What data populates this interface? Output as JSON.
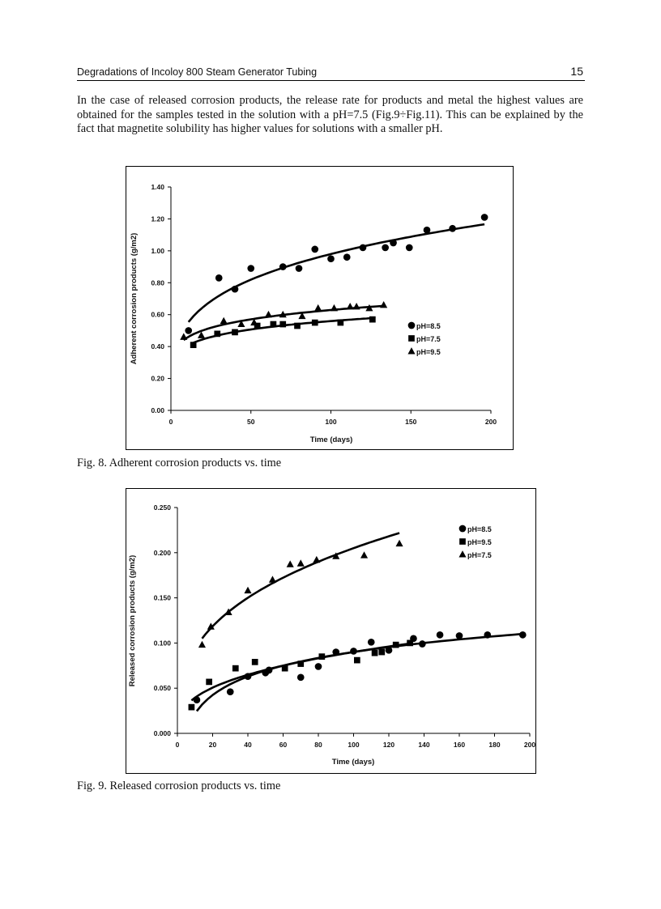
{
  "header": {
    "title": "Degradations of Incoloy 800 Steam Generator Tubing",
    "page_number": "15"
  },
  "body": {
    "paragraph": "In the case of released corrosion products, the release rate for products and metal the highest values are obtained for the samples tested in the solution with a pH=7.5 (Fig.9÷Fig.11). This can be explained by the fact that magnetite solubility has higher values for solutions with a smaller pH."
  },
  "figures": [
    {
      "caption": "Fig. 8. Adherent corrosion products vs. time"
    },
    {
      "caption": "Fig. 9. Released corrosion products vs. time"
    }
  ],
  "chart_data": [
    {
      "type": "scatter",
      "xlabel": "Time (days)",
      "ylabel": "Adherent corrosion products (g/m2)",
      "xlim": [
        0,
        200
      ],
      "ylim": [
        0,
        1.4
      ],
      "xticks": [
        "0",
        "50",
        "100",
        "150",
        "200"
      ],
      "yticks": [
        "0.00",
        "0.20",
        "0.40",
        "0.60",
        "0.80",
        "1.00",
        "1.20",
        "1.40"
      ],
      "grid": false,
      "legend": "right",
      "series": [
        {
          "name": "pH=8.5",
          "marker": "circle",
          "trendline": "power",
          "x": [
            11,
            30,
            40,
            50,
            70,
            80,
            90,
            100,
            110,
            120,
            134,
            139,
            149,
            160,
            176,
            196
          ],
          "y": [
            0.5,
            0.83,
            0.76,
            0.89,
            0.9,
            0.89,
            1.01,
            0.95,
            0.96,
            1.02,
            1.02,
            1.05,
            1.02,
            1.13,
            1.14,
            1.21
          ]
        },
        {
          "name": "pH=7.5",
          "marker": "square",
          "trendline": "power",
          "x": [
            14,
            29,
            40,
            54,
            64,
            70,
            79,
            90,
            106,
            126
          ],
          "y": [
            0.41,
            0.48,
            0.49,
            0.53,
            0.54,
            0.54,
            0.53,
            0.55,
            0.55,
            0.57
          ]
        },
        {
          "name": "pH=9.5",
          "marker": "triangle",
          "trendline": "power",
          "x": [
            8,
            19,
            33,
            44,
            52,
            61,
            70,
            82,
            92,
            102,
            112,
            116,
            124,
            133
          ],
          "y": [
            0.46,
            0.47,
            0.56,
            0.54,
            0.55,
            0.6,
            0.6,
            0.59,
            0.64,
            0.64,
            0.65,
            0.65,
            0.64,
            0.66
          ]
        }
      ]
    },
    {
      "type": "scatter",
      "xlabel": "Time (days)",
      "ylabel": "Released corrosion products (g/m2)",
      "xlim": [
        0,
        200
      ],
      "ylim": [
        0,
        0.25
      ],
      "xticks": [
        "0",
        "20",
        "40",
        "60",
        "80",
        "100",
        "120",
        "140",
        "160",
        "180",
        "200"
      ],
      "yticks": [
        "0.000",
        "0.050",
        "0.100",
        "0.150",
        "0.200",
        "0.250"
      ],
      "grid": false,
      "legend": "top-right",
      "series": [
        {
          "name": "pH=8.5",
          "marker": "circle",
          "trendline": "log",
          "x": [
            11,
            30,
            40,
            50,
            52,
            70,
            80,
            90,
            100,
            110,
            120,
            134,
            139,
            149,
            160,
            176,
            196
          ],
          "y": [
            0.037,
            0.046,
            0.063,
            0.067,
            0.07,
            0.062,
            0.074,
            0.09,
            0.091,
            0.101,
            0.092,
            0.105,
            0.099,
            0.109,
            0.108,
            0.109,
            0.109
          ]
        },
        {
          "name": "pH=9.5",
          "marker": "square",
          "trendline": "power",
          "x": [
            8,
            18,
            33,
            44,
            61,
            70,
            82,
            102,
            112,
            116,
            124,
            132
          ],
          "y": [
            0.029,
            0.057,
            0.072,
            0.079,
            0.072,
            0.077,
            0.085,
            0.081,
            0.089,
            0.09,
            0.098,
            0.1
          ]
        },
        {
          "name": "pH=7.5",
          "marker": "triangle",
          "trendline": "power",
          "x": [
            14,
            19,
            29,
            40,
            54,
            64,
            70,
            79,
            90,
            106,
            126
          ],
          "y": [
            0.098,
            0.118,
            0.134,
            0.158,
            0.17,
            0.187,
            0.188,
            0.192,
            0.196,
            0.197,
            0.21
          ]
        }
      ]
    }
  ]
}
